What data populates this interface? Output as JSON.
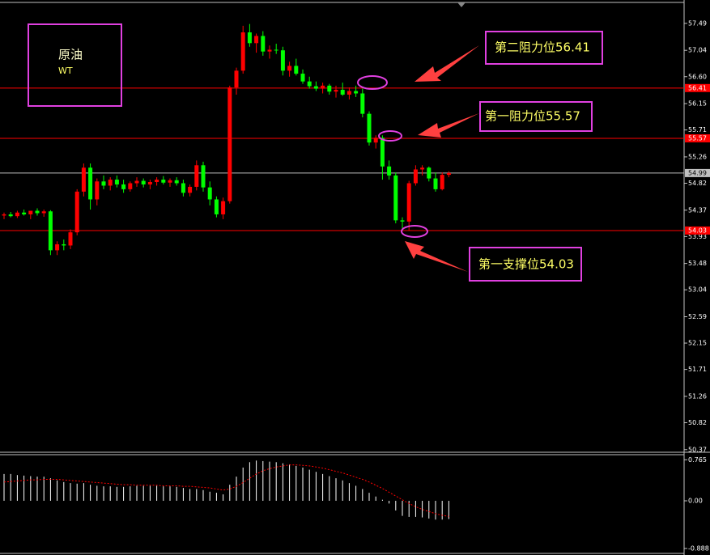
{
  "chart_data": [
    {
      "type": "candlestick",
      "up_color": "#ff0000",
      "down_color": "#00ff00",
      "open": [
        54.28,
        54.3,
        54.27,
        54.33,
        54.3,
        54.36,
        54.32,
        54.35,
        53.7,
        53.8,
        53.78,
        54.0,
        54.68,
        55.08,
        54.55,
        54.85,
        54.78,
        54.88,
        54.8,
        54.72,
        54.82,
        54.86,
        54.8,
        54.84,
        54.88,
        54.83,
        54.87,
        54.82,
        54.66,
        54.76,
        55.12,
        54.75,
        54.55,
        54.3,
        54.52,
        56.42,
        56.7,
        57.34,
        57.16,
        57.28,
        57.02,
        57.05,
        57.04,
        56.7,
        56.78,
        56.65,
        56.52,
        56.44,
        56.4,
        56.45,
        56.35,
        56.38,
        56.3,
        56.36,
        56.32,
        55.98,
        55.5,
        55.58,
        55.1,
        54.95,
        54.2,
        54.18,
        54.82,
        55.05,
        55.08,
        54.9,
        54.72,
        54.96
      ],
      "high": [
        54.33,
        54.34,
        54.36,
        54.38,
        54.35,
        54.4,
        54.38,
        54.37,
        53.85,
        53.88,
        54.05,
        54.72,
        55.15,
        55.15,
        54.9,
        54.95,
        54.92,
        54.95,
        54.88,
        54.85,
        54.92,
        54.9,
        54.88,
        54.92,
        54.94,
        54.9,
        54.92,
        54.88,
        54.8,
        55.2,
        55.18,
        54.85,
        54.6,
        54.58,
        56.45,
        56.75,
        57.45,
        57.48,
        57.32,
        57.36,
        57.12,
        57.15,
        57.1,
        56.85,
        56.9,
        56.72,
        56.6,
        56.52,
        56.5,
        56.48,
        56.45,
        56.5,
        56.42,
        56.45,
        56.4,
        56.02,
        55.62,
        55.62,
        55.2,
        55.0,
        54.25,
        54.86,
        55.12,
        55.12,
        55.1,
        55.0,
        55.0,
        55.02
      ],
      "low": [
        54.22,
        54.25,
        54.24,
        54.28,
        54.22,
        54.28,
        54.26,
        53.62,
        53.62,
        53.7,
        53.72,
        53.95,
        54.6,
        54.38,
        54.45,
        54.72,
        54.7,
        54.75,
        54.66,
        54.68,
        54.76,
        54.75,
        54.72,
        54.78,
        54.8,
        54.76,
        54.78,
        54.6,
        54.6,
        54.7,
        54.68,
        54.45,
        54.25,
        54.22,
        54.48,
        56.3,
        56.65,
        57.1,
        57.0,
        56.95,
        56.9,
        56.98,
        56.62,
        56.6,
        56.62,
        56.48,
        56.4,
        56.36,
        56.32,
        56.3,
        56.25,
        56.28,
        56.22,
        56.26,
        55.92,
        55.45,
        55.4,
        54.88,
        54.88,
        54.15,
        54.03,
        54.03,
        54.78,
        54.95,
        54.85,
        54.68,
        54.7,
        54.92
      ],
      "close": [
        54.3,
        54.27,
        54.33,
        54.3,
        54.36,
        54.32,
        54.35,
        53.7,
        53.8,
        53.78,
        54.0,
        54.68,
        55.08,
        54.55,
        54.85,
        54.78,
        54.88,
        54.8,
        54.72,
        54.82,
        54.86,
        54.8,
        54.84,
        54.88,
        54.83,
        54.87,
        54.82,
        54.66,
        54.76,
        55.12,
        54.75,
        54.55,
        54.3,
        54.52,
        56.42,
        56.7,
        57.34,
        57.16,
        57.28,
        57.02,
        57.05,
        57.04,
        56.7,
        56.78,
        56.65,
        56.52,
        56.44,
        56.4,
        56.45,
        56.35,
        56.38,
        56.3,
        56.36,
        56.32,
        55.98,
        55.5,
        55.58,
        55.1,
        54.95,
        54.2,
        54.18,
        54.82,
        55.05,
        55.08,
        54.9,
        54.72,
        54.96,
        54.99
      ],
      "ylim": [
        50.34,
        57.84
      ],
      "yticks": [
        57.49,
        57.04,
        {
          "value": 56.6,
          "label": "56.60"
        },
        56.15,
        55.71,
        55.26,
        54.82,
        54.37,
        53.93,
        53.48,
        53.04,
        52.59,
        52.15,
        51.71,
        51.26,
        50.82,
        50.37
      ],
      "levels": [
        {
          "value": 56.41,
          "color": "#ff0000"
        },
        {
          "value": 55.57,
          "color": "#ff0000"
        },
        {
          "value": 54.99,
          "color": "#c0c0c0"
        },
        {
          "value": 54.03,
          "color": "#ff0000"
        }
      ],
      "annotations": [
        "原油",
        "WT",
        "第二阻力位56.41",
        "第一阻力位55.57",
        "第一支撑位54.03"
      ]
    },
    {
      "type": "histogram",
      "color": "#ffffff",
      "signal_color": "#ff0000",
      "values": [
        0.5,
        0.5,
        0.48,
        0.47,
        0.46,
        0.45,
        0.45,
        0.42,
        0.38,
        0.35,
        0.33,
        0.32,
        0.33,
        0.3,
        0.28,
        0.27,
        0.27,
        0.26,
        0.26,
        0.27,
        0.28,
        0.28,
        0.28,
        0.28,
        0.27,
        0.27,
        0.26,
        0.24,
        0.22,
        0.22,
        0.2,
        0.17,
        0.15,
        0.12,
        0.3,
        0.45,
        0.62,
        0.72,
        0.75,
        0.74,
        0.73,
        0.72,
        0.7,
        0.68,
        0.65,
        0.62,
        0.58,
        0.54,
        0.5,
        0.46,
        0.42,
        0.38,
        0.33,
        0.28,
        0.22,
        0.15,
        0.08,
        0.02,
        -0.05,
        -0.18,
        -0.28,
        -0.3,
        -0.3,
        -0.31,
        -0.33,
        -0.35,
        -0.35,
        -0.34
      ],
      "signal": [
        0.35,
        0.36,
        0.37,
        0.38,
        0.39,
        0.39,
        0.4,
        0.4,
        0.4,
        0.39,
        0.38,
        0.37,
        0.36,
        0.35,
        0.34,
        0.33,
        0.32,
        0.31,
        0.3,
        0.3,
        0.29,
        0.29,
        0.29,
        0.29,
        0.28,
        0.28,
        0.28,
        0.27,
        0.27,
        0.26,
        0.25,
        0.24,
        0.22,
        0.2,
        0.22,
        0.27,
        0.34,
        0.42,
        0.5,
        0.56,
        0.6,
        0.63,
        0.65,
        0.67,
        0.67,
        0.66,
        0.65,
        0.63,
        0.61,
        0.58,
        0.55,
        0.52,
        0.48,
        0.44,
        0.4,
        0.35,
        0.29,
        0.23,
        0.16,
        0.09,
        0.02,
        -0.05,
        -0.11,
        -0.16,
        -0.2,
        -0.24,
        -0.27,
        -0.29
      ],
      "ylim": [
        -0.95,
        0.86
      ],
      "yticks": [
        0.765,
        {
          "value": 0,
          "label": "0.00"
        },
        -0.888
      ]
    }
  ]
}
